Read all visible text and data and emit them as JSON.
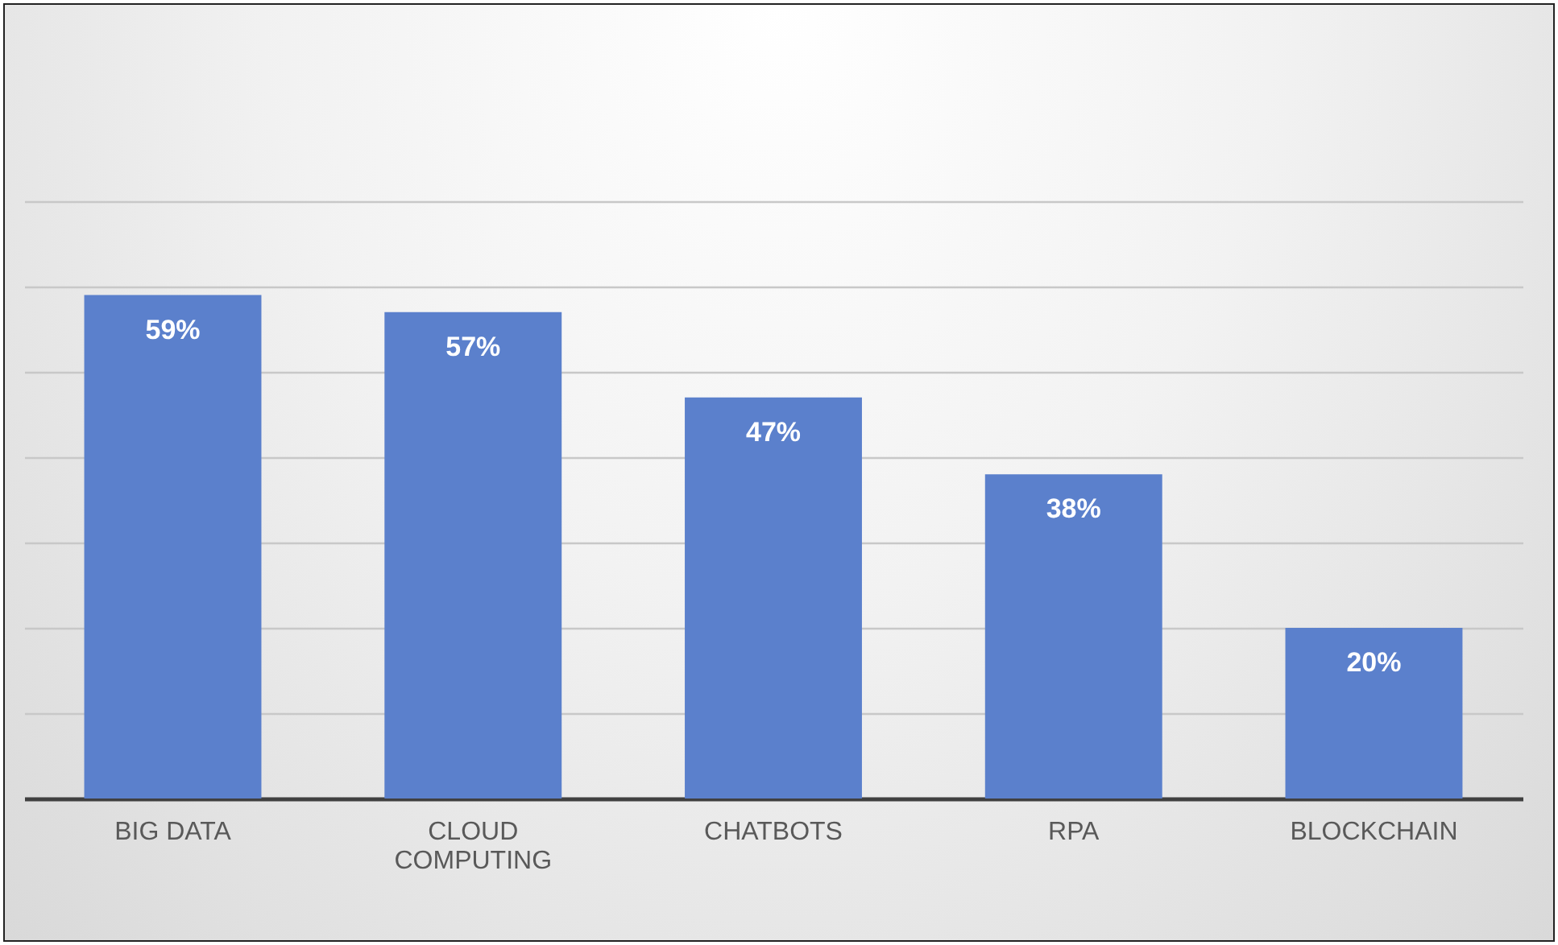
{
  "chart_data": {
    "type": "bar",
    "categories": [
      "BIG DATA",
      "CLOUD COMPUTING",
      "CHATBOTS",
      "RPA",
      "BLOCKCHAIN"
    ],
    "values": [
      59,
      57,
      47,
      38,
      20
    ],
    "value_labels": [
      "59%",
      "57%",
      "47%",
      "38%",
      "20%"
    ],
    "color": "#5b80cc",
    "ylim": [
      0,
      70
    ],
    "yticks": [
      0,
      10,
      20,
      30,
      40,
      50,
      60,
      70
    ],
    "grid": "y",
    "tick_labels": "x"
  }
}
